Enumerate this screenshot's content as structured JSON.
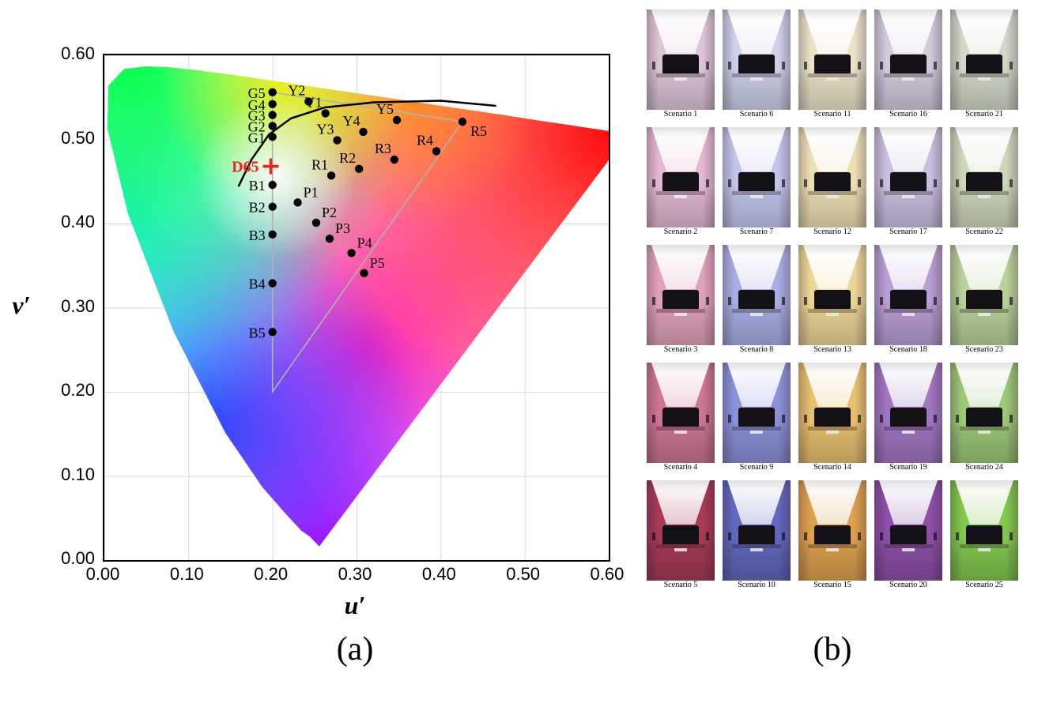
{
  "figure": {
    "caption_a": "(a)",
    "caption_b": "(b)"
  },
  "chart_data": {
    "type": "scatter",
    "title": "",
    "xlabel": "u′",
    "ylabel": "v′",
    "xlim": [
      0.0,
      0.6
    ],
    "ylim": [
      0.0,
      0.6
    ],
    "xticks": [
      "0.00",
      "0.10",
      "0.20",
      "0.30",
      "0.40",
      "0.50",
      "0.60"
    ],
    "yticks": [
      "0.00",
      "0.10",
      "0.20",
      "0.30",
      "0.40",
      "0.50",
      "0.60"
    ],
    "grid": true,
    "background": "CIE 1976 u'v' chromaticity diagram (colored spectral horseshoe)",
    "white_point": {
      "label": "D65",
      "u": 0.198,
      "v": 0.468,
      "marker": "+",
      "color": "#e8251f",
      "label_pos": "left"
    },
    "points": [
      {
        "label": "G1",
        "u": 0.2,
        "v": 0.503,
        "label_pos": "left"
      },
      {
        "label": "G2",
        "u": 0.2,
        "v": 0.516,
        "label_pos": "left"
      },
      {
        "label": "G3",
        "u": 0.2,
        "v": 0.529,
        "label_pos": "left"
      },
      {
        "label": "G4",
        "u": 0.2,
        "v": 0.542,
        "label_pos": "left"
      },
      {
        "label": "G5",
        "u": 0.2,
        "v": 0.556,
        "label_pos": "left"
      },
      {
        "label": "Y1",
        "u": 0.263,
        "v": 0.531,
        "label_pos": "above-left"
      },
      {
        "label": "Y2",
        "u": 0.243,
        "v": 0.545,
        "label_pos": "above-left"
      },
      {
        "label": "Y3",
        "u": 0.277,
        "v": 0.499,
        "label_pos": "above-left"
      },
      {
        "label": "Y4",
        "u": 0.308,
        "v": 0.509,
        "label_pos": "above-left"
      },
      {
        "label": "Y5",
        "u": 0.348,
        "v": 0.523,
        "label_pos": "above-left"
      },
      {
        "label": "R1",
        "u": 0.27,
        "v": 0.457,
        "label_pos": "above-left"
      },
      {
        "label": "R2",
        "u": 0.303,
        "v": 0.465,
        "label_pos": "above-left"
      },
      {
        "label": "R3",
        "u": 0.345,
        "v": 0.476,
        "label_pos": "above-left"
      },
      {
        "label": "R4",
        "u": 0.395,
        "v": 0.486,
        "label_pos": "above-left"
      },
      {
        "label": "R5",
        "u": 0.426,
        "v": 0.521,
        "label_pos": "below-right"
      },
      {
        "label": "B1",
        "u": 0.2,
        "v": 0.446,
        "label_pos": "left"
      },
      {
        "label": "B2",
        "u": 0.2,
        "v": 0.42,
        "label_pos": "left"
      },
      {
        "label": "B3",
        "u": 0.2,
        "v": 0.387,
        "label_pos": "left"
      },
      {
        "label": "B4",
        "u": 0.2,
        "v": 0.329,
        "label_pos": "left"
      },
      {
        "label": "B5",
        "u": 0.2,
        "v": 0.271,
        "label_pos": "left"
      },
      {
        "label": "P1",
        "u": 0.23,
        "v": 0.425,
        "label_pos": "above-right"
      },
      {
        "label": "P2",
        "u": 0.252,
        "v": 0.401,
        "label_pos": "above-right"
      },
      {
        "label": "P3",
        "u": 0.268,
        "v": 0.382,
        "label_pos": "above-right"
      },
      {
        "label": "P4",
        "u": 0.294,
        "v": 0.365,
        "label_pos": "above-right"
      },
      {
        "label": "P5",
        "u": 0.309,
        "v": 0.341,
        "label_pos": "above-right"
      }
    ],
    "gamut_triangle": [
      [
        0.2,
        0.556
      ],
      [
        0.426,
        0.521
      ],
      [
        0.2,
        0.2
      ]
    ],
    "gamut_triangle_color": "#adb5ad",
    "locus_curve": [
      [
        0.16,
        0.445
      ],
      [
        0.175,
        0.476
      ],
      [
        0.196,
        0.506
      ],
      [
        0.222,
        0.525
      ],
      [
        0.262,
        0.538
      ],
      [
        0.32,
        0.544
      ],
      [
        0.4,
        0.546
      ],
      [
        0.465,
        0.54
      ]
    ],
    "locus_curve_color": "#000000"
  },
  "scenario_grid": {
    "layout": "5 columns x 5 rows, numbered down each column",
    "scenarios": [
      {
        "label": "Scenario 1",
        "wall": "#dcc6d6"
      },
      {
        "label": "Scenario 2",
        "wall": "#e3b9d2"
      },
      {
        "label": "Scenario 3",
        "wall": "#e0a2bb"
      },
      {
        "label": "Scenario 4",
        "wall": "#ce7694"
      },
      {
        "label": "Scenario 5",
        "wall": "#a63b55"
      },
      {
        "label": "Scenario 6",
        "wall": "#cdd1e9"
      },
      {
        "label": "Scenario 7",
        "wall": "#c2c6ec"
      },
      {
        "label": "Scenario 8",
        "wall": "#a8aee3"
      },
      {
        "label": "Scenario 9",
        "wall": "#8a92d8"
      },
      {
        "label": "Scenario 10",
        "wall": "#6168bd"
      },
      {
        "label": "Scenario 11",
        "wall": "#ebe3c8"
      },
      {
        "label": "Scenario 12",
        "wall": "#eddfb4"
      },
      {
        "label": "Scenario 13",
        "wall": "#ecd697"
      },
      {
        "label": "Scenario 14",
        "wall": "#e8c170"
      },
      {
        "label": "Scenario 15",
        "wall": "#dda14e"
      },
      {
        "label": "Scenario 16",
        "wall": "#d2cbdd"
      },
      {
        "label": "Scenario 17",
        "wall": "#cbbfe0"
      },
      {
        "label": "Scenario 18",
        "wall": "#b99fd3"
      },
      {
        "label": "Scenario 19",
        "wall": "#a077c2"
      },
      {
        "label": "Scenario 20",
        "wall": "#8d4fa8"
      },
      {
        "label": "Scenario 21",
        "wall": "#d2d8c9"
      },
      {
        "label": "Scenario 22",
        "wall": "#ccd8ba"
      },
      {
        "label": "Scenario 23",
        "wall": "#b8d29b"
      },
      {
        "label": "Scenario 24",
        "wall": "#9cc878"
      },
      {
        "label": "Scenario 25",
        "wall": "#82c74e"
      }
    ]
  }
}
